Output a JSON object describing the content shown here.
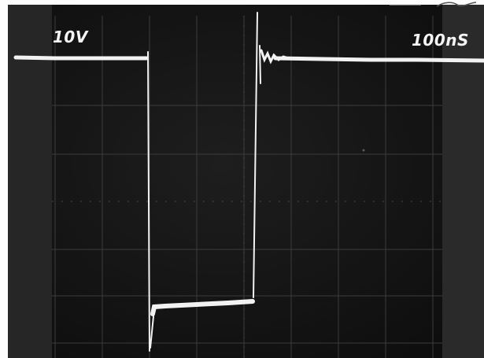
{
  "scope": {
    "volts_per_div": "10V",
    "time_per_div": "100nS",
    "grid": {
      "columns": 8,
      "rows": 7
    },
    "trace_color": "#f2f2f2",
    "grid_color": "#3c3c3c",
    "screen_color": "#141414"
  }
}
